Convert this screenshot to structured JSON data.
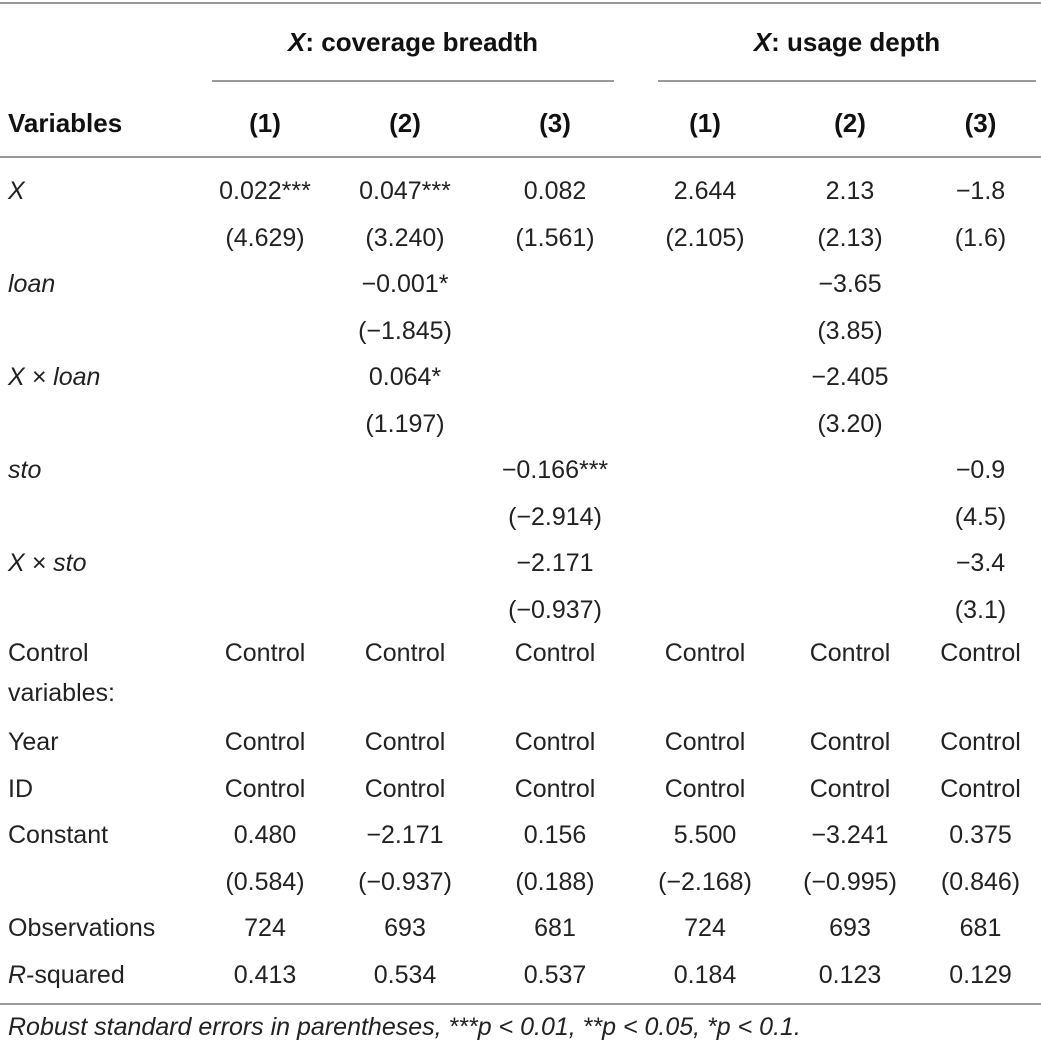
{
  "groups": [
    "coverage breadth",
    "usage depth"
  ],
  "group_prefix": "X",
  "header": {
    "variables": "Variables",
    "cols": [
      "(1)",
      "(2)",
      "(3)",
      "(1)",
      "(2)",
      "(3)"
    ]
  },
  "rows": [
    {
      "label": "X",
      "italic": true,
      "cells": [
        "0.022***",
        "0.047***",
        "0.082",
        "2.644",
        "2.13",
        "−1.8"
      ]
    },
    {
      "label": "",
      "cells": [
        "(4.629)",
        "(3.240)",
        "(1.561)",
        "(2.105)",
        "(2.13)",
        "(1.6)"
      ]
    },
    {
      "label": "loan",
      "italic": true,
      "cells": [
        "",
        "−0.001*",
        "",
        "",
        "−3.65",
        ""
      ]
    },
    {
      "label": "",
      "cells": [
        "",
        "(−1.845)",
        "",
        "",
        "(3.85)",
        ""
      ]
    },
    {
      "label": "X × loan",
      "italic": true,
      "cells": [
        "",
        "0.064*",
        "",
        "",
        "−2.405",
        ""
      ]
    },
    {
      "label": "",
      "cells": [
        "",
        "(1.197)",
        "",
        "",
        "(3.20)",
        ""
      ]
    },
    {
      "label": "sto",
      "italic": true,
      "cells": [
        "",
        "",
        "−0.166***",
        "",
        "",
        "−0.9"
      ]
    },
    {
      "label": "",
      "cells": [
        "",
        "",
        "(−2.914)",
        "",
        "",
        "(4.5)"
      ]
    },
    {
      "label": "X × sto",
      "italic": true,
      "cells": [
        "",
        "",
        "−2.171",
        "",
        "",
        "−3.4"
      ]
    },
    {
      "label": "",
      "cells": [
        "",
        "",
        "(−0.937)",
        "",
        "",
        "(3.1)"
      ]
    },
    {
      "label": "Control variables:",
      "tall": true,
      "cells": [
        "Control",
        "Control",
        "Control",
        "Control",
        "Control",
        "Control"
      ]
    },
    {
      "label": "Year",
      "cells": [
        "Control",
        "Control",
        "Control",
        "Control",
        "Control",
        "Control"
      ]
    },
    {
      "label": "ID",
      "cells": [
        "Control",
        "Control",
        "Control",
        "Control",
        "Control",
        "Control"
      ]
    },
    {
      "label": "Constant",
      "cells": [
        "0.480",
        "−2.171",
        "0.156",
        "5.500",
        "−3.241",
        "0.375"
      ]
    },
    {
      "label": "",
      "cells": [
        "(0.584)",
        "(−0.937)",
        "(0.188)",
        "(−2.168)",
        "(−0.995)",
        "(0.846)"
      ]
    },
    {
      "label": "Observations",
      "cells": [
        "724",
        "693",
        "681",
        "724",
        "693",
        "681"
      ]
    },
    {
      "label": "R-squared",
      "r2": true,
      "cells": [
        "0.413",
        "0.534",
        "0.537",
        "0.184",
        "0.123",
        "0.129"
      ]
    }
  ],
  "note": "Robust standard errors in parentheses, ***p < 0.01, **p < 0.05, *p < 0.1."
}
